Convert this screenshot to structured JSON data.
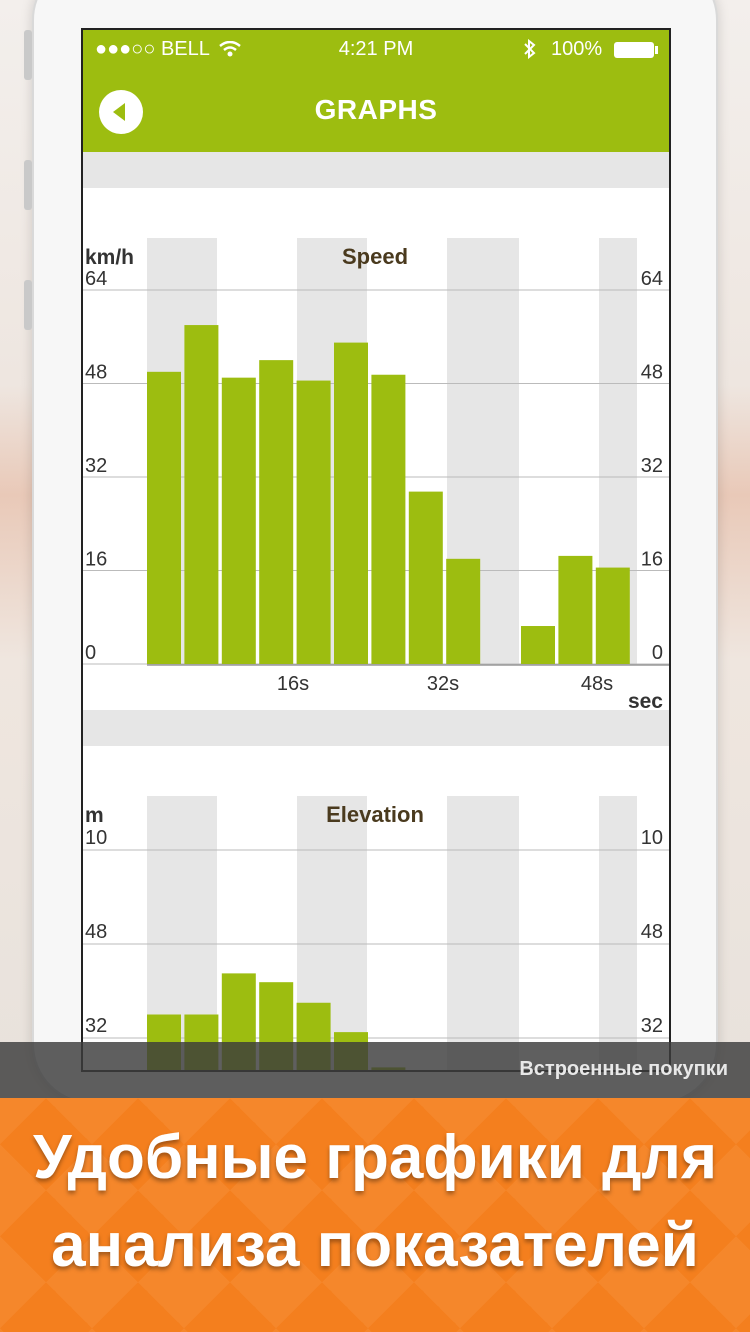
{
  "status_bar": {
    "carrier": "●●●○○ BELL",
    "time": "4:21 PM",
    "battery": "100%",
    "icons": [
      "wifi-icon",
      "bluetooth-icon",
      "battery-icon"
    ]
  },
  "nav": {
    "title": "GRAPHS",
    "back_icon": "back-arrow-icon"
  },
  "colors": {
    "accent": "#9dbd10",
    "bar": "#9dbd10",
    "band": "#e6e6e6",
    "banner": "#f47f1e"
  },
  "chart_data": [
    {
      "type": "bar",
      "title": "Speed",
      "ylabel": "km/h",
      "xlabel": "sec",
      "ylim": [
        0,
        64
      ],
      "yticks": [
        "0",
        "16",
        "32",
        "48",
        "64"
      ],
      "xticks": [
        "16s",
        "32s",
        "48s"
      ],
      "values": [
        50,
        58,
        49,
        52,
        48.5,
        55,
        49.5,
        29.5,
        18,
        0,
        6.5,
        18.5,
        16.5
      ]
    },
    {
      "type": "bar",
      "title": "Elevation",
      "ylabel": "m",
      "yticks": [
        "32",
        "48",
        "10"
      ],
      "values": [
        36,
        36,
        43,
        41.5,
        38,
        33,
        27,
        7.5
      ]
    }
  ],
  "in_app_purchases": "Встроенные покупки",
  "banner": {
    "line1": "Удобные графики для",
    "line2": "анализа показателей"
  }
}
